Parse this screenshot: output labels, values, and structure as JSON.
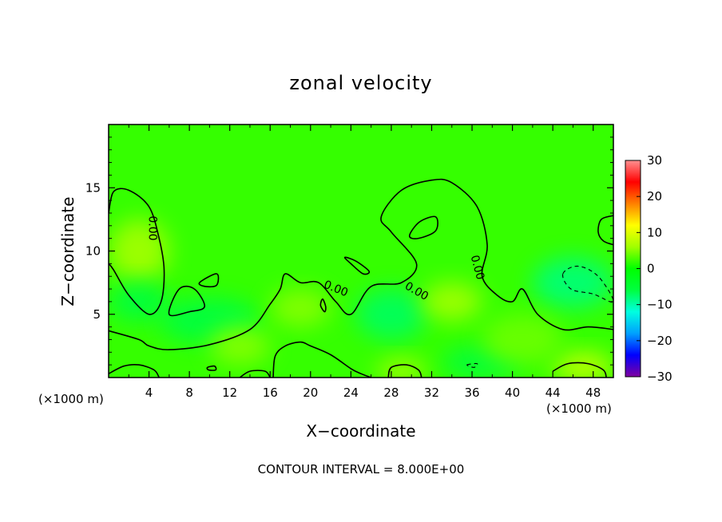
{
  "chart_data": {
    "type": "heatmap",
    "title": "zonal velocity",
    "xlabel": "X−coordinate",
    "ylabel": "Z−coordinate",
    "x_unit": "(×1000 m)",
    "y_unit": "(×1000 m)",
    "xlim": [
      0,
      50
    ],
    "ylim": [
      0,
      20
    ],
    "x_ticks": [
      4,
      8,
      12,
      16,
      20,
      24,
      28,
      32,
      36,
      40,
      44,
      48
    ],
    "x_tick_labels": [
      "4",
      "8",
      "12",
      "16",
      "20",
      "24",
      "28",
      "32",
      "36",
      "40",
      "44",
      "48"
    ],
    "y_ticks": [
      5,
      10,
      15
    ],
    "y_tick_labels": [
      "5",
      "10",
      "15"
    ],
    "colorbar": {
      "range": [
        -30,
        30
      ],
      "ticks": [
        30,
        20,
        10,
        0,
        -10,
        -20,
        -30
      ],
      "tick_labels": [
        "30",
        "20",
        "10",
        "0",
        "−10",
        "−20",
        "−30"
      ],
      "colors": [
        "#7f00a0",
        "#0000ff",
        "#00a0ff",
        "#00ffe0",
        "#00ff40",
        "#00ff00",
        "#a0ff00",
        "#ffff00",
        "#ff8000",
        "#ff0000",
        "#ff9090"
      ]
    },
    "background_value": 2,
    "zero_contour_label": "0.00",
    "annotation": "CONTOUR INTERVAL = 8.000E+00",
    "features": [
      {
        "kind": "positive",
        "value": 6,
        "cx": 3,
        "cy": 10,
        "rx": 3,
        "ry": 2.5
      },
      {
        "kind": "negative",
        "value": -6,
        "cx": 3,
        "cy": 6,
        "rx": 3,
        "ry": 1.5
      },
      {
        "kind": "negative",
        "value": -6,
        "cx": 10,
        "cy": 4.5,
        "rx": 5,
        "ry": 1.8
      },
      {
        "kind": "positive",
        "value": 5,
        "cx": 19,
        "cy": 5.5,
        "rx": 3,
        "ry": 1.5
      },
      {
        "kind": "negative",
        "value": -7,
        "cx": 28,
        "cy": 5,
        "rx": 3.5,
        "ry": 2
      },
      {
        "kind": "negative",
        "value": -6,
        "cx": 37,
        "cy": 1.2,
        "rx": 4,
        "ry": 1.2
      },
      {
        "kind": "positive",
        "value": 6,
        "cx": 34,
        "cy": 6,
        "rx": 3,
        "ry": 1.5
      },
      {
        "kind": "negative",
        "value": -8,
        "cx": 46,
        "cy": 7.5,
        "rx": 4,
        "ry": 2
      },
      {
        "kind": "positive",
        "value": 8,
        "cx": 47,
        "cy": 0.8,
        "rx": 3,
        "ry": 1.2
      },
      {
        "kind": "positive",
        "value": 6,
        "cx": 29,
        "cy": 0.5,
        "rx": 2.5,
        "ry": 1
      },
      {
        "kind": "positive",
        "value": 5,
        "cx": 13,
        "cy": 2.5,
        "rx": 3,
        "ry": 1.5
      },
      {
        "kind": "positive",
        "value": 4,
        "cx": 41,
        "cy": 3,
        "rx": 4,
        "ry": 2
      }
    ],
    "zero_contours": [
      {
        "closed": false,
        "dashed": false,
        "points": [
          [
            0,
            13
          ],
          [
            0.5,
            14.7
          ],
          [
            2,
            14.8
          ],
          [
            4,
            13.5
          ],
          [
            5,
            11
          ],
          [
            5.5,
            8.5
          ],
          [
            5.2,
            6
          ],
          [
            4,
            5
          ],
          [
            2,
            6.5
          ],
          [
            0.5,
            8.5
          ],
          [
            0,
            9
          ]
        ]
      },
      {
        "closed": true,
        "dashed": false,
        "points": [
          [
            6,
            5
          ],
          [
            7,
            7
          ],
          [
            8.5,
            7
          ],
          [
            9.5,
            5.6
          ],
          [
            8,
            5.2
          ]
        ]
      },
      {
        "closed": true,
        "dashed": false,
        "points": [
          [
            9,
            7.5
          ],
          [
            10.7,
            8.2
          ],
          [
            10.7,
            7.3
          ],
          [
            9.6,
            7.2
          ]
        ]
      },
      {
        "closed": false,
        "dashed": false,
        "points": [
          [
            0,
            3.7
          ],
          [
            3,
            3
          ],
          [
            4,
            2.5
          ],
          [
            6,
            2.2
          ],
          [
            10,
            2.6
          ],
          [
            14,
            3.8
          ],
          [
            16,
            5.8
          ],
          [
            17,
            7
          ],
          [
            17.5,
            8.2
          ],
          [
            19,
            7.5
          ],
          [
            20.8,
            7.5
          ],
          [
            22.5,
            6
          ],
          [
            24,
            5
          ],
          [
            26,
            7.2
          ],
          [
            29,
            7.5
          ],
          [
            30.5,
            9
          ],
          [
            28,
            11.5
          ],
          [
            27,
            12.7
          ],
          [
            29,
            14.8
          ],
          [
            32,
            15.6
          ],
          [
            34,
            15.4
          ],
          [
            36.5,
            13.5
          ],
          [
            37.5,
            10.5
          ],
          [
            37,
            8
          ],
          [
            38.5,
            6.5
          ],
          [
            40,
            6
          ],
          [
            41,
            7
          ],
          [
            42.5,
            5
          ],
          [
            45,
            3.8
          ],
          [
            47.5,
            4
          ],
          [
            50,
            3.8
          ]
        ]
      },
      {
        "closed": true,
        "dashed": false,
        "points": [
          [
            29.8,
            11.2
          ],
          [
            30.8,
            12.3
          ],
          [
            32.4,
            12.7
          ],
          [
            32.4,
            11.6
          ],
          [
            30.7,
            11
          ]
        ]
      },
      {
        "closed": true,
        "dashed": false,
        "points": [
          [
            23.4,
            9.5
          ],
          [
            24.5,
            9.2
          ],
          [
            25.8,
            8.4
          ],
          [
            25.2,
            8.2
          ],
          [
            24,
            9
          ]
        ]
      },
      {
        "closed": true,
        "dashed": false,
        "points": [
          [
            21.2,
            6.2
          ],
          [
            21.5,
            5.6
          ],
          [
            21.4,
            5.2
          ],
          [
            21,
            5.7
          ]
        ]
      },
      {
        "closed": false,
        "dashed": false,
        "points": [
          [
            0,
            0.3
          ],
          [
            1.5,
            0.9
          ],
          [
            3,
            1
          ],
          [
            4.5,
            0.6
          ],
          [
            5,
            0
          ]
        ]
      },
      {
        "closed": false,
        "dashed": false,
        "points": [
          [
            13,
            0
          ],
          [
            14,
            0.5
          ],
          [
            15.5,
            0.5
          ],
          [
            16,
            0
          ]
        ]
      },
      {
        "closed": false,
        "dashed": false,
        "points": [
          [
            16.3,
            0
          ],
          [
            16.5,
            1.7
          ],
          [
            17.5,
            2.5
          ],
          [
            19,
            2.8
          ],
          [
            20,
            2.5
          ],
          [
            22,
            1.8
          ],
          [
            24,
            0.7
          ],
          [
            25,
            0.3
          ],
          [
            26,
            0
          ]
        ]
      },
      {
        "closed": false,
        "dashed": false,
        "points": [
          [
            27.7,
            0
          ],
          [
            28,
            0.8
          ],
          [
            29.5,
            1
          ],
          [
            30.7,
            0.6
          ],
          [
            31,
            0
          ]
        ]
      },
      {
        "closed": true,
        "dashed": false,
        "points": [
          [
            9.8,
            0.8
          ],
          [
            10.5,
            0.9
          ],
          [
            10.6,
            0.6
          ],
          [
            9.9,
            0.6
          ]
        ]
      },
      {
        "closed": false,
        "dashed": false,
        "points": [
          [
            44,
            0.5
          ],
          [
            45.5,
            1.1
          ],
          [
            47.5,
            1.1
          ],
          [
            49,
            0.6
          ],
          [
            49.3,
            0
          ]
        ]
      },
      {
        "closed": false,
        "dashed": false,
        "points": [
          [
            50,
            12.8
          ],
          [
            48.8,
            12.5
          ],
          [
            48.5,
            11.5
          ],
          [
            49,
            10.8
          ],
          [
            50,
            10.5
          ]
        ]
      },
      {
        "closed": true,
        "dashed": true,
        "points": [
          [
            45,
            8.2
          ],
          [
            46.5,
            8.8
          ],
          [
            48.5,
            8
          ],
          [
            50,
            6
          ],
          [
            48,
            6.6
          ],
          [
            45.8,
            7
          ]
        ]
      },
      {
        "closed": true,
        "dashed": true,
        "points": [
          [
            35.5,
            1
          ],
          [
            36.5,
            1.1
          ],
          [
            36.2,
            0.8
          ]
        ]
      }
    ],
    "zero_label_positions": [
      [
        4.3,
        11.8
      ],
      [
        22.5,
        7
      ],
      [
        30.5,
        6.8
      ],
      [
        36.5,
        8.7
      ]
    ]
  }
}
